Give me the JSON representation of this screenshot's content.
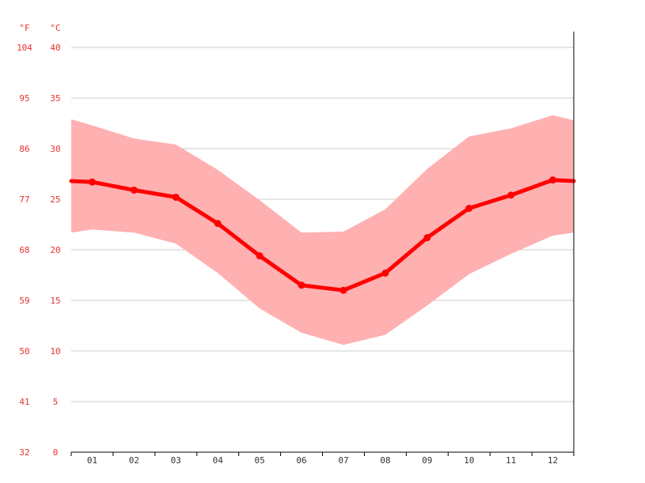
{
  "chart_data": {
    "type": "area",
    "title": "",
    "xlabel": "",
    "ylabel": "",
    "unit_f": "°F",
    "unit_c": "°C",
    "categories": [
      "01",
      "02",
      "03",
      "04",
      "05",
      "06",
      "07",
      "08",
      "09",
      "10",
      "11",
      "12"
    ],
    "ylim": [
      0,
      40
    ],
    "y_ticks_c": [
      "0",
      "5",
      "10",
      "15",
      "20",
      "25",
      "30",
      "35",
      "40"
    ],
    "y_ticks_f": [
      "32",
      "41",
      "50",
      "59",
      "68",
      "77",
      "86",
      "95",
      "104"
    ],
    "grid": true,
    "legend": "none",
    "series": [
      {
        "values": [
          26.7,
          25.9,
          25.2,
          22.6,
          19.4,
          16.5,
          16.0,
          17.7,
          21.2,
          24.1,
          25.4,
          26.9
        ],
        "color": "#ff0000"
      },
      {
        "type": "range",
        "min": [
          22.0,
          21.7,
          20.6,
          17.7,
          14.2,
          11.8,
          10.6,
          11.6,
          14.5,
          17.6,
          19.6,
          21.4
        ],
        "max": [
          32.3,
          31.0,
          30.4,
          27.9,
          24.9,
          21.7,
          21.8,
          24.0,
          28.0,
          31.2,
          32.0,
          33.3
        ],
        "color": "#ffb0b0"
      }
    ],
    "edge_left": {
      "value": 26.8,
      "min": 21.7,
      "max": 32.9
    },
    "edge_right": {
      "value": 26.8,
      "min": 21.7,
      "max": 32.8
    }
  }
}
